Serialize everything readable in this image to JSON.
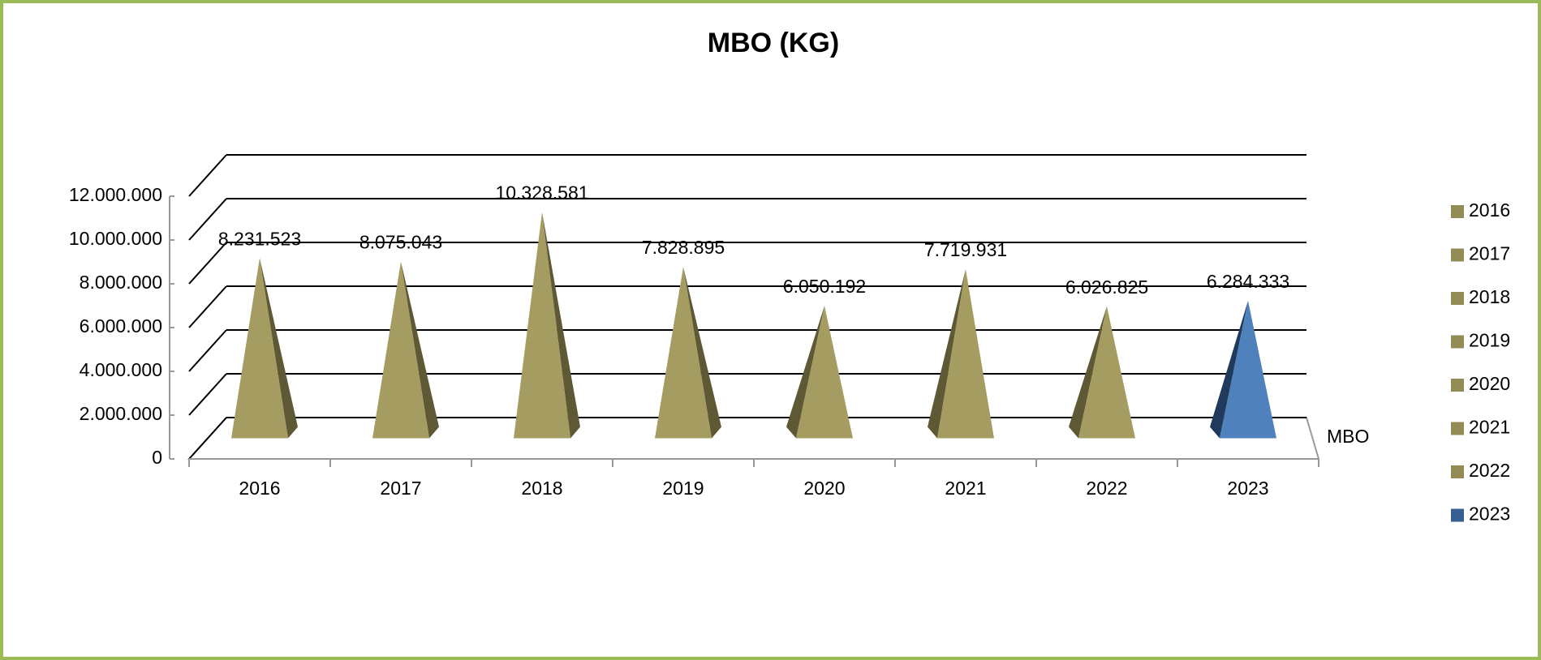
{
  "chart_data": {
    "type": "pyramid3d",
    "title": "MBO (KG)",
    "categories": [
      "2016",
      "2017",
      "2018",
      "2019",
      "2020",
      "2021",
      "2022",
      "2023"
    ],
    "series_name": "MBO",
    "values": [
      8231523,
      8075043,
      10328581,
      7828895,
      6050192,
      7719931,
      6026825,
      6284333
    ],
    "value_labels": [
      "8.231.523",
      "8.075.043",
      "10.328.581",
      "7.828.895",
      "6.050.192",
      "7.719.931",
      "6.026.825",
      "6.284.333"
    ],
    "colors": [
      "#a59c62",
      "#a59c62",
      "#a59c62",
      "#a59c62",
      "#a59c62",
      "#a59c62",
      "#a59c62",
      "#4f81bd"
    ],
    "ylim": [
      0,
      12000000
    ],
    "yticks": [
      {
        "value": 0,
        "label": "0"
      },
      {
        "value": 2000000,
        "label": "2.000.000"
      },
      {
        "value": 4000000,
        "label": "4.000.000"
      },
      {
        "value": 6000000,
        "label": "6.000.000"
      },
      {
        "value": 8000000,
        "label": "8.000.000"
      },
      {
        "value": 10000000,
        "label": "10.000.000"
      },
      {
        "value": 12000000,
        "label": "12.000.000"
      }
    ],
    "grid": true,
    "legend": "right"
  }
}
